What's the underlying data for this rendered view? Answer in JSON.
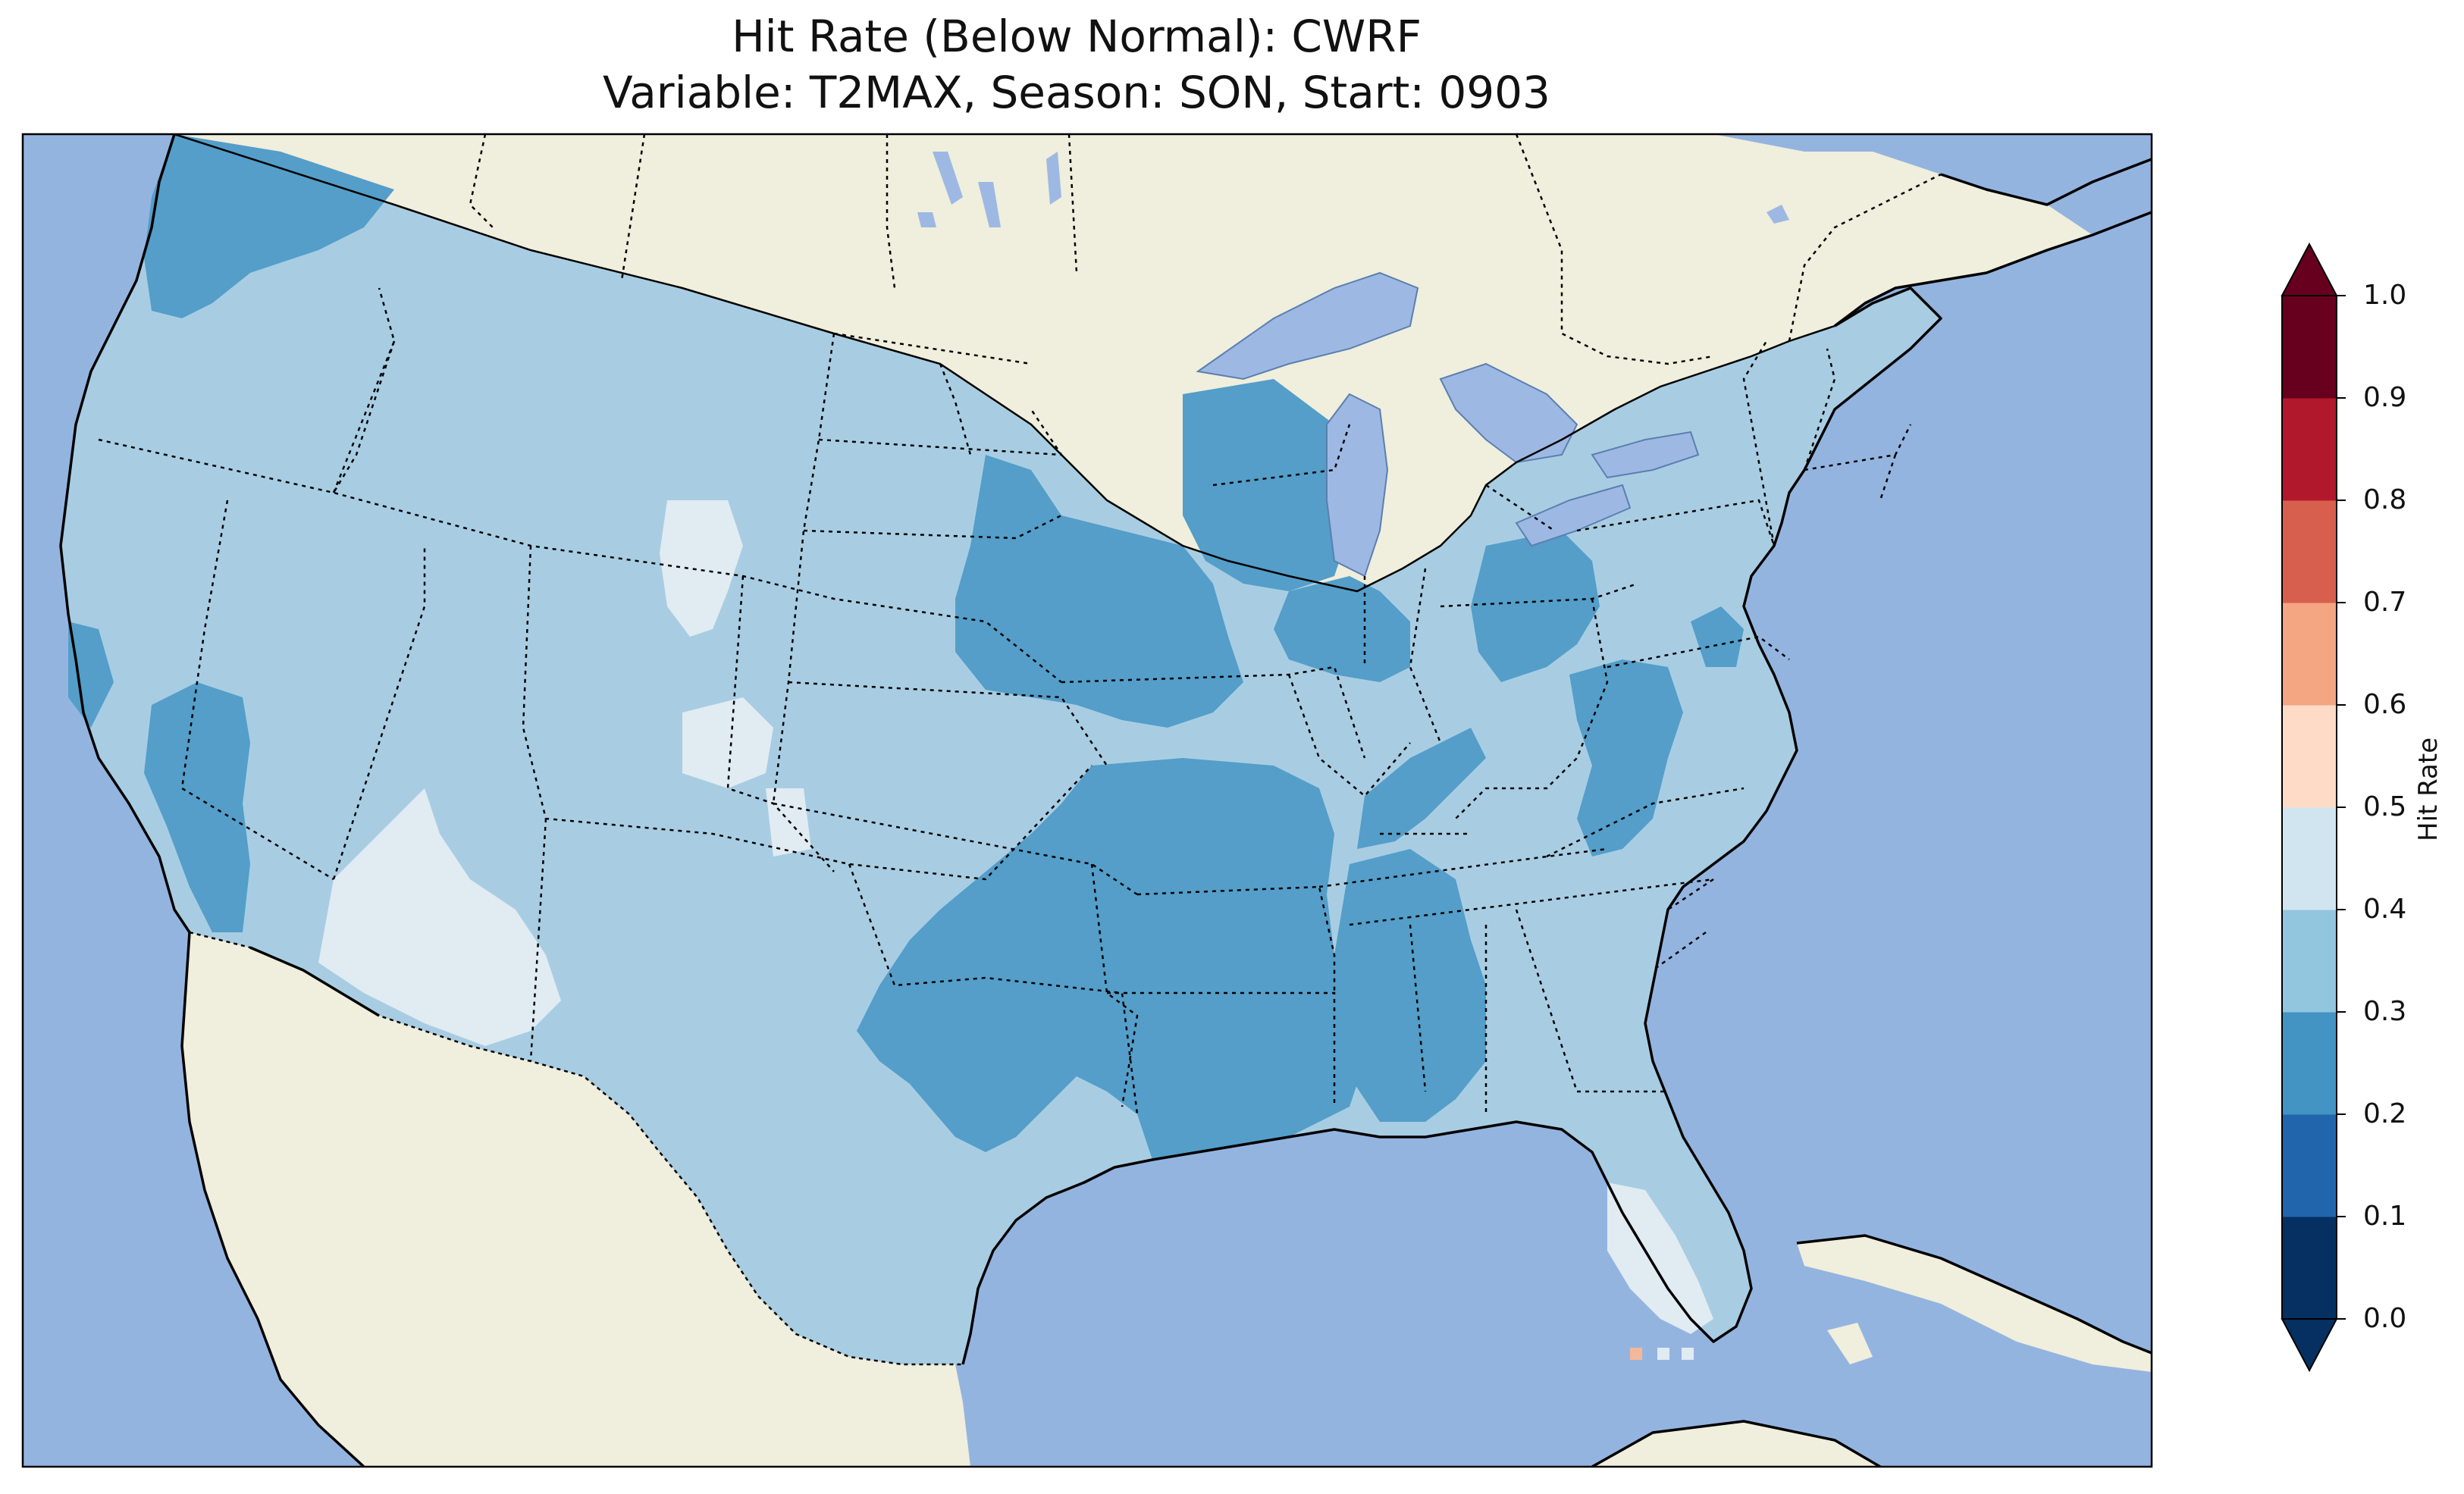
{
  "title": "Hit Rate (Below Normal): CWRF",
  "subtitle": "Variable: T2MAX, Season: SON, Start: 0903",
  "colors": {
    "ocean": "#94b4e0",
    "land": "#f0eedc",
    "lake": "#9db9e3",
    "class_0.2_0.3": "#549ec9",
    "class_0.3_0.4": "#a8cde3",
    "class_0.4_0.5": "#e1ebf2",
    "class_0.6_0.7": "#f5b79a"
  },
  "colorbar": {
    "title": "Hit Rate",
    "ticks": [
      "0.0",
      "0.1",
      "0.2",
      "0.3",
      "0.4",
      "0.5",
      "0.6",
      "0.7",
      "0.8",
      "0.9",
      "1.0"
    ],
    "colors": [
      "#053061",
      "#2166ac",
      "#4393c3",
      "#92c5de",
      "#d1e5f0",
      "#fddbc7",
      "#f4a582",
      "#d6604d",
      "#b2182b",
      "#67001f"
    ],
    "extend": "both",
    "under_color": "#053061",
    "over_color": "#67001f"
  }
}
